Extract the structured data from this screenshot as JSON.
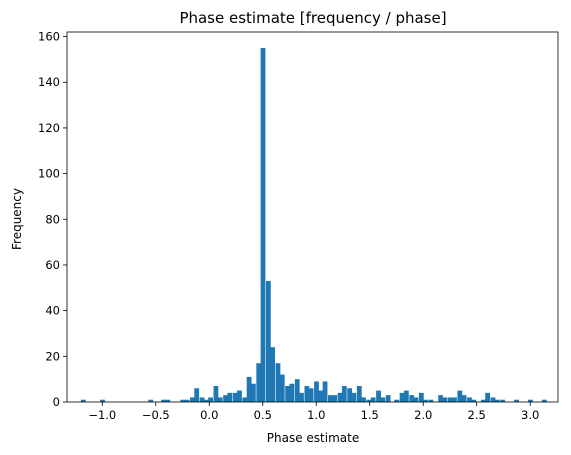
{
  "chart_data": {
    "type": "bar",
    "title": "Phase estimate [frequency / phase]",
    "xlabel": "Phase estimate",
    "ylabel": "Frequency",
    "xlim": [
      -1.33,
      3.26
    ],
    "ylim": [
      0,
      162
    ],
    "bin_width": 0.0447,
    "x_ticks": [
      -1.0,
      -0.5,
      0.0,
      0.5,
      1.0,
      1.5,
      2.0,
      2.5,
      3.0
    ],
    "x_tick_labels": [
      "−1.0",
      "−0.5",
      "0.0",
      "0.5",
      "1.0",
      "1.5",
      "2.0",
      "2.5",
      "3.0"
    ],
    "y_ticks": [
      0,
      20,
      40,
      60,
      80,
      100,
      120,
      140,
      160
    ],
    "y_tick_labels": [
      "0",
      "20",
      "40",
      "60",
      "80",
      "100",
      "120",
      "140",
      "160"
    ],
    "grid": false,
    "bar_color": "#1f77b4",
    "bins": [
      {
        "x": -1.2,
        "y": 1
      },
      {
        "x": -1.02,
        "y": 1
      },
      {
        "x": -0.57,
        "y": 1
      },
      {
        "x": -0.45,
        "y": 1
      },
      {
        "x": -0.41,
        "y": 1
      },
      {
        "x": -0.27,
        "y": 1
      },
      {
        "x": -0.23,
        "y": 1
      },
      {
        "x": -0.18,
        "y": 2
      },
      {
        "x": -0.14,
        "y": 6
      },
      {
        "x": -0.09,
        "y": 2
      },
      {
        "x": -0.05,
        "y": 1
      },
      {
        "x": -0.01,
        "y": 2
      },
      {
        "x": 0.04,
        "y": 7
      },
      {
        "x": 0.08,
        "y": 2
      },
      {
        "x": 0.13,
        "y": 3
      },
      {
        "x": 0.17,
        "y": 4
      },
      {
        "x": 0.22,
        "y": 4
      },
      {
        "x": 0.26,
        "y": 5
      },
      {
        "x": 0.31,
        "y": 2
      },
      {
        "x": 0.35,
        "y": 11
      },
      {
        "x": 0.39,
        "y": 8
      },
      {
        "x": 0.44,
        "y": 17
      },
      {
        "x": 0.48,
        "y": 155
      },
      {
        "x": 0.53,
        "y": 53
      },
      {
        "x": 0.57,
        "y": 24
      },
      {
        "x": 0.62,
        "y": 17
      },
      {
        "x": 0.66,
        "y": 12
      },
      {
        "x": 0.71,
        "y": 7
      },
      {
        "x": 0.75,
        "y": 8
      },
      {
        "x": 0.8,
        "y": 10
      },
      {
        "x": 0.84,
        "y": 4
      },
      {
        "x": 0.89,
        "y": 7
      },
      {
        "x": 0.93,
        "y": 6
      },
      {
        "x": 0.98,
        "y": 9
      },
      {
        "x": 1.02,
        "y": 5
      },
      {
        "x": 1.06,
        "y": 9
      },
      {
        "x": 1.11,
        "y": 3
      },
      {
        "x": 1.15,
        "y": 3
      },
      {
        "x": 1.2,
        "y": 4
      },
      {
        "x": 1.24,
        "y": 7
      },
      {
        "x": 1.29,
        "y": 6
      },
      {
        "x": 1.33,
        "y": 4
      },
      {
        "x": 1.38,
        "y": 7
      },
      {
        "x": 1.42,
        "y": 2
      },
      {
        "x": 1.47,
        "y": 1
      },
      {
        "x": 1.51,
        "y": 2
      },
      {
        "x": 1.56,
        "y": 5
      },
      {
        "x": 1.6,
        "y": 2
      },
      {
        "x": 1.65,
        "y": 3
      },
      {
        "x": 1.73,
        "y": 1
      },
      {
        "x": 1.78,
        "y": 4
      },
      {
        "x": 1.82,
        "y": 5
      },
      {
        "x": 1.87,
        "y": 3
      },
      {
        "x": 1.91,
        "y": 2
      },
      {
        "x": 1.96,
        "y": 4
      },
      {
        "x": 2.0,
        "y": 1
      },
      {
        "x": 2.05,
        "y": 1
      },
      {
        "x": 2.14,
        "y": 3
      },
      {
        "x": 2.18,
        "y": 2
      },
      {
        "x": 2.23,
        "y": 2
      },
      {
        "x": 2.27,
        "y": 2
      },
      {
        "x": 2.32,
        "y": 5
      },
      {
        "x": 2.36,
        "y": 3
      },
      {
        "x": 2.41,
        "y": 2
      },
      {
        "x": 2.45,
        "y": 1
      },
      {
        "x": 2.54,
        "y": 1
      },
      {
        "x": 2.58,
        "y": 4
      },
      {
        "x": 2.63,
        "y": 2
      },
      {
        "x": 2.67,
        "y": 1
      },
      {
        "x": 2.72,
        "y": 1
      },
      {
        "x": 2.85,
        "y": 1
      },
      {
        "x": 2.98,
        "y": 1
      },
      {
        "x": 3.11,
        "y": 1
      }
    ]
  }
}
